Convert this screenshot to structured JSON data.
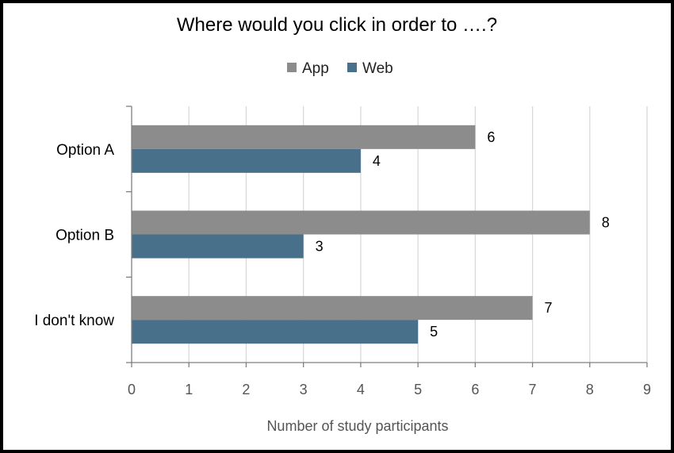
{
  "chart_data": {
    "type": "bar",
    "orientation": "horizontal",
    "title": "Where would you click in order to ….?",
    "xlabel": "Number of study participants",
    "ylabel": "",
    "categories": [
      "Option A",
      "Option B",
      "I don't know"
    ],
    "series": [
      {
        "name": "App",
        "color": "#8c8c8c",
        "values": [
          6,
          8,
          7
        ]
      },
      {
        "name": "Web",
        "color": "#48708a",
        "values": [
          4,
          3,
          5
        ]
      }
    ],
    "xlim": [
      0,
      9
    ],
    "xticks": [
      "0",
      "1",
      "2",
      "3",
      "4",
      "5",
      "6",
      "7",
      "8",
      "9"
    ],
    "grid": true,
    "legend_position": "top-center",
    "data_labels": true
  }
}
